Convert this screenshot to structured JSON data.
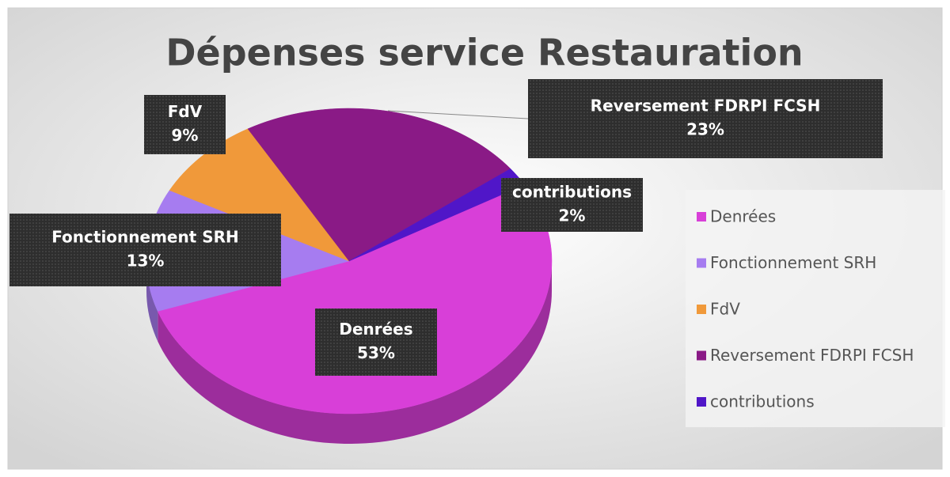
{
  "chart_data": {
    "type": "pie3d",
    "title": "Dépenses service Restauration",
    "categories": [
      "Denrées",
      "Fonctionnement SRH",
      "FdV",
      "Reversement FDRPI FCSH",
      "contributions"
    ],
    "values": [
      53,
      13,
      9,
      23,
      2
    ],
    "value_labels": [
      "53%",
      "13%",
      "9%",
      "23%",
      "2%"
    ],
    "colors": [
      "#d83fd8",
      "#a67cf0",
      "#f0993a",
      "#8a1a86",
      "#5016c8"
    ],
    "legend": "right"
  }
}
